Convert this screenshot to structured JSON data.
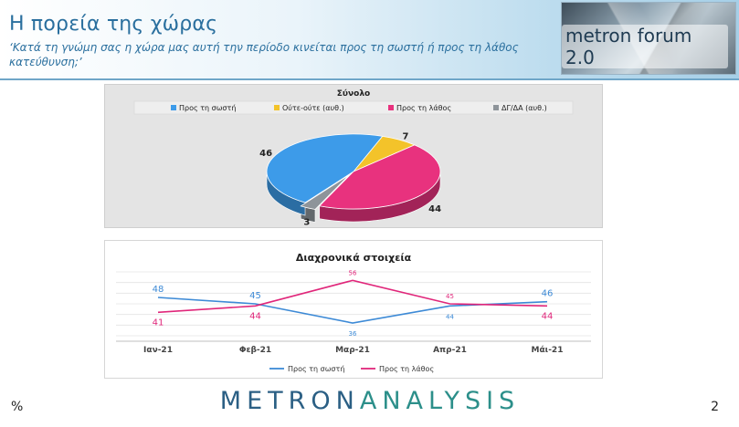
{
  "header": {
    "title": "Η πορεία της χώρας",
    "subtitle": "‘Κατά τη γνώμη σας η χώρα μας αυτή την περίοδο κινείται προς τη σωστή ή προς τη λάθος κατεύθυνση;’",
    "brand": "metron forum 2.0"
  },
  "footer": {
    "left": "%",
    "page": "2",
    "brand_part1": "METRON",
    "brand_part2": "ANALYSIS"
  },
  "chart_data": [
    {
      "type": "pie",
      "title": "Σύνολο",
      "legend_position": "top",
      "categories": [
        "Προς τη σωστή",
        "Ούτε-ούτε (αυθ.)",
        "Προς τη λάθος",
        "ΔΓ/ΔΑ (αυθ.)"
      ],
      "values": [
        46,
        7,
        44,
        3
      ],
      "colors": [
        "#3d9be9",
        "#f3c32a",
        "#e8327e",
        "#8e949a"
      ]
    },
    {
      "type": "line",
      "title": "Διαχρονικά στοιχεία",
      "legend_position": "bottom",
      "categories": [
        "Ιαν-21",
        "Φεβ-21",
        "Μαρ-21",
        "Απρ-21",
        "Μάι-21"
      ],
      "series": [
        {
          "name": "Προς τη σωστή",
          "values": [
            48,
            45,
            36,
            44,
            46
          ],
          "color": "#3d8ad6"
        },
        {
          "name": "Προς τη λάθος",
          "values": [
            41,
            44,
            56,
            45,
            44
          ],
          "color": "#e0267a"
        }
      ],
      "grid": true
    }
  ]
}
